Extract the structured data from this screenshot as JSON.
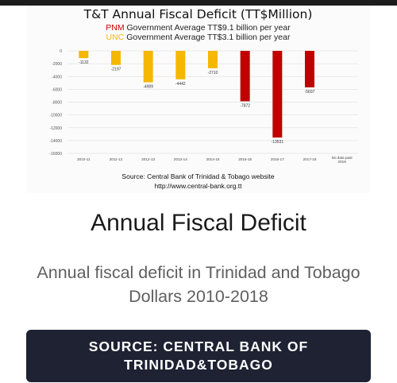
{
  "chart_data": {
    "type": "bar",
    "title": "T&T Annual Fiscal Deficit (TT$Million)",
    "subtitle_pnm": {
      "party": "PNM",
      "text": " Government Average TT$9.1 billion per year",
      "color": "#cc0000"
    },
    "subtitle_unc": {
      "party": "UNC",
      "text": " Government Average TT$3.1 billion per year",
      "color": "#f5b700"
    },
    "categories": [
      "2010-11",
      "2011-12",
      "2012-13",
      "2013-14",
      "2014-15",
      "2015-16",
      "2016-17",
      "2017-18",
      "No data past 2018"
    ],
    "values": [
      -1132,
      -2197,
      -4909,
      -4442,
      -2710,
      -7872,
      -13531,
      -5697,
      null
    ],
    "value_labels": [
      "-1132",
      "-2197",
      "-4909",
      "-4442",
      "-2710",
      "-7872",
      "-13531",
      "-5697",
      ""
    ],
    "bar_colors": [
      "#f5b700",
      "#f5b700",
      "#f5b700",
      "#f5b700",
      "#f5b700",
      "#c00000",
      "#c00000",
      "#c00000",
      ""
    ],
    "y_ticks": [
      0,
      -2000,
      -4000,
      -6000,
      -8000,
      -10000,
      -12000,
      -14000,
      -16000
    ],
    "y_tick_labels": [
      "0",
      "-2000",
      "-4000",
      "-6000",
      "-8000",
      "-10000",
      "-12000",
      "-14000",
      "-16000"
    ],
    "ylim": [
      -16000,
      0
    ],
    "grid": true,
    "source_line1": "Source: Central Bank of Trinidad & Tobago website",
    "source_line2": "http://www.central-bank.org.tt"
  },
  "headline": "Annual Fiscal Deficit",
  "description": "Annual fiscal deficit in Trinidad and Tobago Dollars 2010-2018",
  "source_button": "SOURCE: CENTRAL BANK OF TRINIDAD&TOBAGO",
  "colors": {
    "button_bg": "#1e2233",
    "unc": "#f5b700",
    "pnm": "#c00000"
  }
}
